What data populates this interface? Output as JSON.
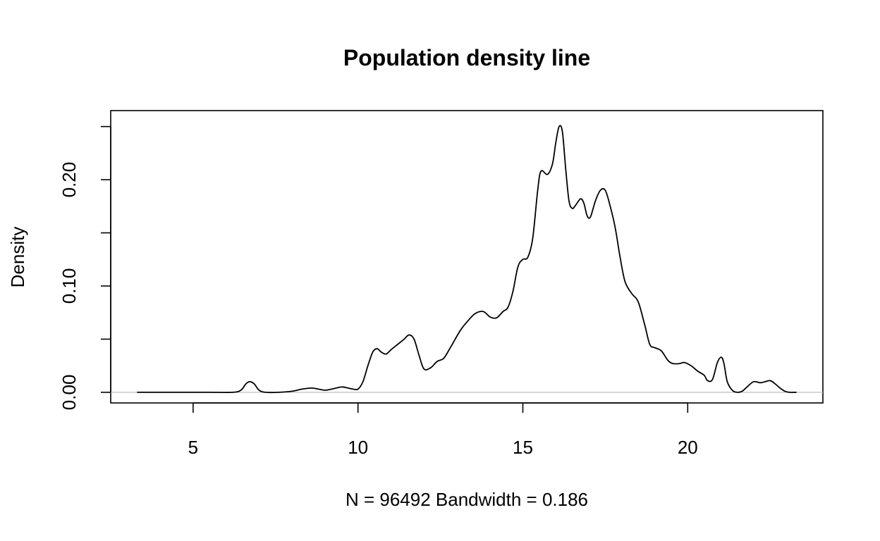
{
  "chart_data": {
    "type": "line",
    "title": "Population density line",
    "xlabel": "N = 96492   Bandwidth = 0.186",
    "ylabel": "Density",
    "xlim": [
      2.5,
      24.1
    ],
    "ylim": [
      -0.01,
      0.265
    ],
    "xticks": [
      5,
      10,
      15,
      20
    ],
    "xtick_labels": [
      "5",
      "10",
      "15",
      "20"
    ],
    "yticks": [
      0.0,
      0.05,
      0.1,
      0.15,
      0.2,
      0.25
    ],
    "ytick_labels": [
      "0.00",
      "",
      "0.10",
      "",
      "0.20",
      ""
    ],
    "grid": false,
    "zero_line": true,
    "series": [
      {
        "x": [
          3.3,
          4.5,
          5.5,
          6.2,
          6.45,
          6.6,
          6.72,
          6.85,
          7.0,
          7.2,
          7.6,
          8.0,
          8.3,
          8.6,
          8.8,
          9.0,
          9.2,
          9.5,
          9.7,
          9.85,
          10.0,
          10.15,
          10.3,
          10.45,
          10.58,
          10.7,
          10.85,
          11.0,
          11.2,
          11.4,
          11.55,
          11.7,
          11.85,
          12.0,
          12.2,
          12.4,
          12.6,
          12.8,
          13.1,
          13.3,
          13.55,
          13.8,
          14.0,
          14.2,
          14.4,
          14.55,
          14.7,
          14.85,
          15.0,
          15.15,
          15.3,
          15.45,
          15.55,
          15.75,
          15.9,
          16.0,
          16.1,
          16.2,
          16.3,
          16.4,
          16.5,
          16.6,
          16.75,
          16.85,
          16.95,
          17.05,
          17.2,
          17.35,
          17.5,
          17.65,
          17.8,
          17.95,
          18.1,
          18.3,
          18.5,
          18.7,
          18.85,
          19.0,
          19.2,
          19.4,
          19.55,
          19.75,
          19.9,
          20.1,
          20.3,
          20.5,
          20.6,
          20.75,
          20.9,
          21.02,
          21.1,
          21.2,
          21.35,
          21.5,
          21.65,
          21.8,
          22.0,
          22.2,
          22.35,
          22.5,
          22.65,
          22.8,
          22.95,
          23.1,
          23.3
        ],
        "y": [
          0,
          0,
          0,
          0,
          0.002,
          0.008,
          0.01,
          0.008,
          0.002,
          0,
          0,
          0.001,
          0.003,
          0.004,
          0.003,
          0.002,
          0.003,
          0.005,
          0.004,
          0.003,
          0.003,
          0.01,
          0.025,
          0.038,
          0.041,
          0.038,
          0.036,
          0.04,
          0.045,
          0.05,
          0.054,
          0.05,
          0.035,
          0.022,
          0.023,
          0.029,
          0.032,
          0.042,
          0.058,
          0.066,
          0.074,
          0.076,
          0.071,
          0.07,
          0.076,
          0.08,
          0.095,
          0.118,
          0.125,
          0.127,
          0.145,
          0.19,
          0.208,
          0.205,
          0.215,
          0.235,
          0.25,
          0.245,
          0.21,
          0.18,
          0.173,
          0.176,
          0.182,
          0.178,
          0.166,
          0.165,
          0.18,
          0.19,
          0.19,
          0.175,
          0.155,
          0.127,
          0.104,
          0.093,
          0.085,
          0.063,
          0.045,
          0.042,
          0.039,
          0.03,
          0.027,
          0.027,
          0.028,
          0.025,
          0.02,
          0.016,
          0.011,
          0.012,
          0.028,
          0.033,
          0.027,
          0.01,
          0.002,
          0,
          0.001,
          0.005,
          0.01,
          0.009,
          0.01,
          0.011,
          0.008,
          0.004,
          0.001,
          0,
          0
        ]
      }
    ]
  }
}
